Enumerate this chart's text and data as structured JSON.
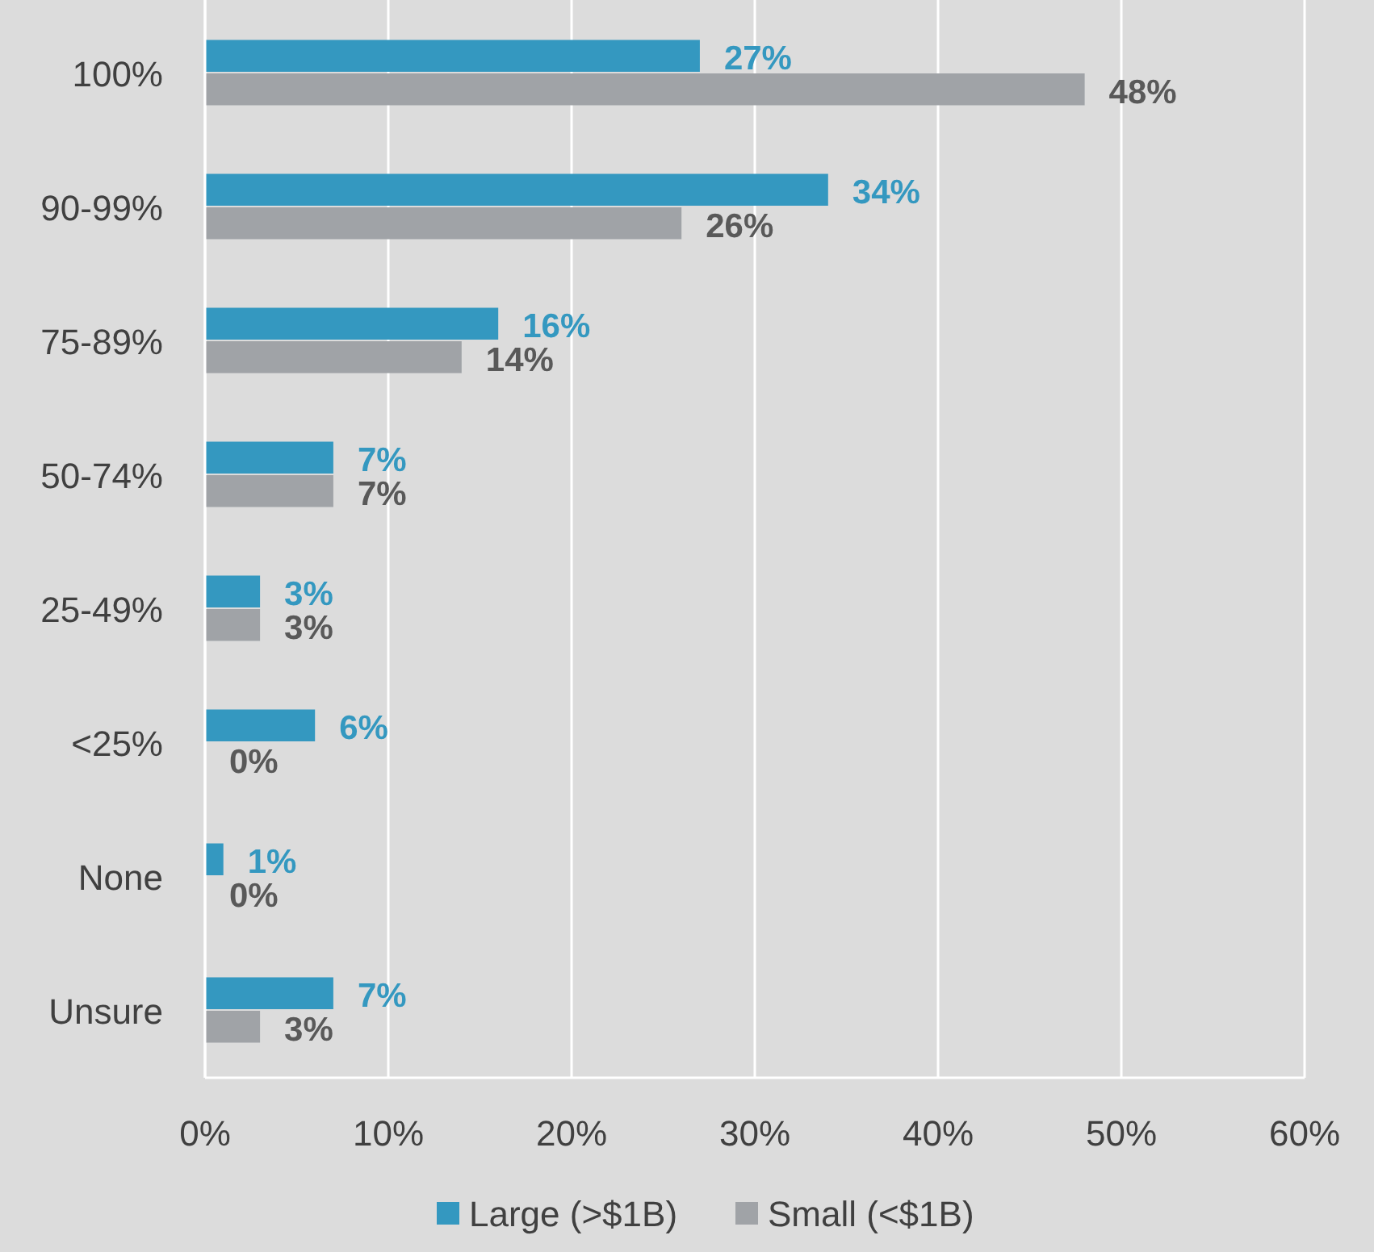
{
  "chart_data": {
    "type": "bar",
    "orientation": "horizontal",
    "categories": [
      "100%",
      "90-99%",
      "75-89%",
      "50-74%",
      "25-49%",
      "<25%",
      "None",
      "Unsure"
    ],
    "series": [
      {
        "name": "Large (>$1B)",
        "color": "#3498c0",
        "values": [
          27,
          34,
          16,
          7,
          3,
          6,
          1,
          7
        ],
        "value_labels": [
          "27%",
          "34%",
          "16%",
          "7%",
          "3%",
          "6%",
          "1%",
          "7%"
        ]
      },
      {
        "name": "Small (<$1B)",
        "color": "#a0a3a7",
        "values": [
          48,
          26,
          14,
          7,
          3,
          0,
          0,
          3
        ],
        "value_labels": [
          "48%",
          "26%",
          "14%",
          "7%",
          "3%",
          "0%",
          "0%",
          "3%"
        ]
      }
    ],
    "xlim": [
      0,
      60
    ],
    "xticks": [
      {
        "value": 0,
        "label": "0%"
      },
      {
        "value": 10,
        "label": "10%"
      },
      {
        "value": 20,
        "label": "20%"
      },
      {
        "value": 30,
        "label": "30%"
      },
      {
        "value": 40,
        "label": "40%"
      },
      {
        "value": 50,
        "label": "50%"
      },
      {
        "value": 60,
        "label": "60%"
      }
    ],
    "grid": "x",
    "legend": "bottom"
  }
}
